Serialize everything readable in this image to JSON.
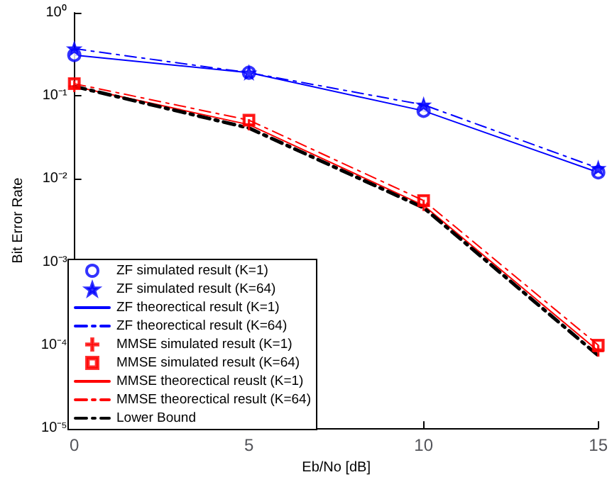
{
  "chart_data": {
    "type": "line",
    "xlabel": "Eb/No [dB]",
    "ylabel": "Bit Error Rate",
    "log": "y",
    "x": [
      0,
      5,
      10,
      15
    ],
    "xlim": [
      0,
      15
    ],
    "xticks": [
      0,
      5,
      10,
      15
    ],
    "ylim": [
      1e-05,
      1
    ],
    "yticks": [
      {
        "value": 1e-05,
        "label": "10⁻⁵"
      },
      {
        "value": 0.0001,
        "label": "10⁻⁴"
      },
      {
        "value": 0.001,
        "label": "10⁻³"
      },
      {
        "value": 0.01,
        "label": "10⁻²"
      },
      {
        "value": 0.1,
        "label": "10⁻¹"
      },
      {
        "value": 1,
        "label": "10⁰"
      }
    ],
    "grid": false,
    "legend": "bottom left",
    "series": [
      {
        "name": "ZF simulated result (K=1)",
        "type": "scatter",
        "marker": "circle",
        "color": "#0000ff",
        "values": [
          0.31,
          0.19,
          0.066,
          0.012
        ]
      },
      {
        "name": "ZF simulated result (K=64)",
        "type": "scatter",
        "marker": "star",
        "color": "#0000ff",
        "values": [
          0.37,
          0.19,
          0.078,
          0.0135
        ]
      },
      {
        "name": "ZF theorectical result (K=1)",
        "marker": "none",
        "line_style": "solid",
        "color": "#0000ff",
        "values": [
          0.31,
          0.19,
          0.066,
          0.012
        ]
      },
      {
        "name": "ZF theorectical result (K=64)",
        "marker": "none",
        "line_style": "dashed",
        "color": "#0000ff",
        "values": [
          0.37,
          0.19,
          0.078,
          0.0135
        ]
      },
      {
        "name": "MMSE simulated result (K=1)",
        "type": "scatter",
        "marker": "cross",
        "color": "#ff0000",
        "values": [
          0.13,
          0.045,
          0.0048,
          8.5e-05
        ]
      },
      {
        "name": "MMSE simulated result (K=64)",
        "type": "scatter",
        "marker": "square",
        "color": "#ff0000",
        "values": [
          0.14,
          0.051,
          0.0055,
          0.0001
        ]
      },
      {
        "name": "MMSE theorectical reuslt (K=1)",
        "marker": "none",
        "line_style": "solid",
        "color": "#ff0000",
        "values": [
          0.13,
          0.045,
          0.0048,
          8.5e-05
        ]
      },
      {
        "name": "MMSE theorectical result (K=64)",
        "marker": "none",
        "line_style": "dashed",
        "color": "#ff0000",
        "values": [
          0.14,
          0.051,
          0.0055,
          0.0001
        ]
      },
      {
        "name": "Lower Bound",
        "marker": "none",
        "line_style": "dashed",
        "color": "#000000",
        "values": [
          0.13,
          0.041,
          0.0045,
          7.5e-05
        ]
      }
    ]
  }
}
